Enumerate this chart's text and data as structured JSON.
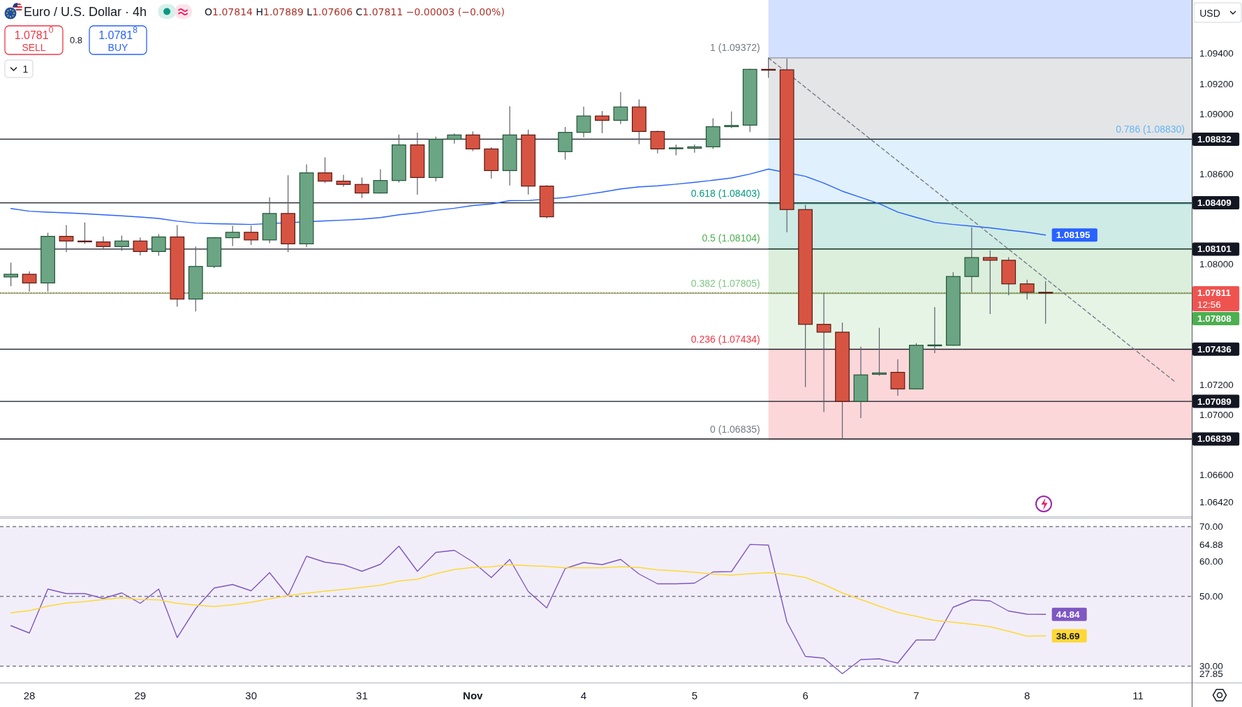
{
  "chart_data": [
    {
      "type": "candlestick",
      "title": "Euro / U.S. Dollar · 4h",
      "subtitle": "O1.07814 H1.07889 L1.07606 C1.07811 −0.00003 (−0.00%)",
      "categories": [
        null,
        null,
        null,
        null,
        null,
        null,
        null,
        null,
        null,
        null,
        null,
        null,
        null,
        null,
        null,
        null,
        null,
        null,
        null,
        null,
        null,
        null,
        null,
        null,
        null,
        null,
        null,
        null,
        null,
        null,
        null,
        null,
        null,
        null,
        null,
        null,
        null,
        null,
        null,
        null,
        null,
        null,
        null,
        null,
        null,
        null,
        null,
        null,
        null,
        null,
        null,
        null,
        null,
        null,
        null,
        null,
        null,
        null,
        null,
        null,
        null,
        null,
        null,
        null
      ],
      "ohlc": [
        [
          1.07916,
          1.08012,
          1.07855,
          1.07934
        ],
        [
          1.07934,
          1.07953,
          1.07819,
          1.07876
        ],
        [
          1.07876,
          1.0821,
          1.07819,
          1.08186
        ],
        [
          1.08186,
          1.08261,
          1.08081,
          1.08155
        ],
        [
          1.08155,
          1.08278,
          1.08136,
          1.08153
        ],
        [
          1.08149,
          1.08186,
          1.081,
          1.08118
        ],
        [
          1.08118,
          1.08191,
          1.0809,
          1.08155
        ],
        [
          1.08155,
          1.08179,
          1.08059,
          1.08085
        ],
        [
          1.08085,
          1.08201,
          1.08057,
          1.08182
        ],
        [
          1.08182,
          1.08261,
          1.07718,
          1.07769
        ],
        [
          1.07769,
          1.08118,
          1.07687,
          1.07986
        ],
        [
          1.07986,
          1.08182,
          1.07975,
          1.08177
        ],
        [
          1.08177,
          1.08256,
          1.08122,
          1.08213
        ],
        [
          1.08213,
          1.08256,
          1.08129,
          1.08162
        ],
        [
          1.08162,
          1.08445,
          1.0814,
          1.08338
        ],
        [
          1.08338,
          1.08592,
          1.08081,
          1.08136
        ],
        [
          1.08136,
          1.08665,
          1.08114,
          1.08608
        ],
        [
          1.08608,
          1.08711,
          1.0854,
          1.08553
        ],
        [
          1.08553,
          1.08595,
          1.08516,
          1.08531
        ],
        [
          1.08531,
          1.08577,
          1.08441,
          1.08474
        ],
        [
          1.08474,
          1.08632,
          1.08471,
          1.08557
        ],
        [
          1.08557,
          1.08863,
          1.08544,
          1.08794
        ],
        [
          1.08794,
          1.08876,
          1.08463,
          1.08577
        ],
        [
          1.08577,
          1.08849,
          1.08552,
          1.08831
        ],
        [
          1.08831,
          1.0887,
          1.08803,
          1.0886
        ],
        [
          1.0886,
          1.08884,
          1.08753,
          1.08767
        ],
        [
          1.08767,
          1.08778,
          1.0857,
          1.08623
        ],
        [
          1.08623,
          1.09051,
          1.08524,
          1.0886
        ],
        [
          1.0886,
          1.08895,
          1.08464,
          1.0852
        ],
        [
          1.0852,
          1.08527,
          1.08305,
          1.08316
        ],
        [
          1.08749,
          1.08913,
          1.08696,
          1.08877
        ],
        [
          1.08877,
          1.09048,
          1.08844,
          1.08986
        ],
        [
          1.08986,
          1.09019,
          1.08872,
          1.08957
        ],
        [
          1.08957,
          1.09145,
          1.08932,
          1.09046
        ],
        [
          1.09046,
          1.09096,
          1.08799,
          1.08883
        ],
        [
          1.08883,
          1.08888,
          1.08737,
          1.08767
        ],
        [
          1.08771,
          1.08796,
          1.08725,
          1.08774
        ],
        [
          1.08771,
          1.08797,
          1.08742,
          1.08781
        ],
        [
          1.08781,
          1.08971,
          1.08767,
          1.08915
        ],
        [
          1.08915,
          1.09016,
          1.08906,
          1.08923
        ],
        [
          1.08925,
          1.093,
          1.08879,
          1.09296
        ],
        [
          1.09296,
          1.09372,
          1.0924,
          1.09293
        ],
        [
          1.09293,
          1.09367,
          1.08213,
          1.08364
        ],
        [
          1.08364,
          1.08395,
          1.07185,
          1.07601
        ],
        [
          1.07601,
          1.0781,
          1.07017,
          1.07549
        ],
        [
          1.07549,
          1.07613,
          1.06835,
          1.07089
        ],
        [
          1.07089,
          1.07452,
          1.06978,
          1.07265
        ],
        [
          1.07269,
          1.07578,
          1.0726,
          1.07278
        ],
        [
          1.07282,
          1.07369,
          1.07127,
          1.07172
        ],
        [
          1.07172,
          1.07476,
          1.07168,
          1.07462
        ],
        [
          1.0746,
          1.07716,
          1.0741,
          1.07464
        ],
        [
          1.07462,
          1.07948,
          1.0746,
          1.07919
        ],
        [
          1.07919,
          1.08246,
          1.07814,
          1.08045
        ],
        [
          1.08045,
          1.08093,
          1.07669,
          1.08027
        ],
        [
          1.08027,
          1.08047,
          1.07795,
          1.0787
        ],
        [
          1.0787,
          1.07898,
          1.07766,
          1.07814
        ],
        [
          1.07814,
          1.07889,
          1.07606,
          1.07811
        ],
        null,
        null,
        null,
        null,
        null,
        null,
        null
      ],
      "series": [
        {
          "type": "line",
          "color": "#2962ff",
          "values": [
            1.08371,
            1.08353,
            1.08347,
            1.08342,
            1.08336,
            1.08329,
            1.08322,
            1.08314,
            1.08305,
            1.08287,
            1.08274,
            1.0827,
            1.08268,
            1.08265,
            null,
            null,
            null,
            1.08289,
            1.08294,
            1.083,
            1.08311,
            1.08329,
            1.08342,
            1.08359,
            1.08373,
            1.08391,
            1.08401,
            1.08423,
            1.08424,
            null,
            1.08444,
            1.08462,
            1.0848,
            1.08501,
            1.08515,
            1.08522,
            1.08533,
            1.08545,
            1.08559,
            1.08574,
            1.086,
            1.08633,
            null,
            1.08585,
            1.0854,
            1.08486,
            1.08445,
            1.08403,
            1.08347,
            1.08312,
            1.08279,
            1.08265,
            1.08254,
            1.08242,
            1.08227,
            1.08213,
            1.08195,
            null,
            null,
            null,
            null,
            null,
            null,
            null
          ],
          "value_labels": [
            null,
            null,
            null,
            null,
            null,
            null,
            null,
            null,
            null,
            null,
            null,
            null,
            null,
            null,
            null,
            null,
            null,
            null,
            null,
            null,
            null,
            null,
            null,
            null,
            null,
            null,
            null,
            null,
            null,
            null,
            null,
            null,
            null,
            null,
            null,
            null,
            null,
            null,
            null,
            null,
            null,
            null,
            null,
            null,
            null,
            null,
            null,
            null,
            null,
            null,
            null,
            null,
            null,
            null,
            null,
            null,
            "1.08195",
            null,
            null,
            null,
            null,
            null,
            null,
            null
          ]
        },
        {
          "type": "line",
          "color": "#787b86",
          "line_style": "dashed",
          "values": [
            null,
            null,
            null,
            null,
            null,
            null,
            null,
            null,
            null,
            null,
            null,
            null,
            null,
            null,
            null,
            null,
            null,
            null,
            null,
            null,
            null,
            null,
            null,
            null,
            null,
            null,
            null,
            null,
            null,
            null,
            null,
            null,
            null,
            null,
            null,
            null,
            null,
            null,
            null,
            null,
            null,
            1.09372,
            null,
            null,
            null,
            null,
            null,
            null,
            null,
            null,
            null,
            null,
            null,
            null,
            null,
            null,
            null,
            null,
            null,
            null,
            null,
            null,
            null,
            1.0722
          ]
        }
      ],
      "ylim": [
        1.06324,
        1.09757
      ],
      "yticks": [
        {
          "value": 1.094,
          "label": "1.09400"
        },
        {
          "value": 1.092,
          "label": "1.09200"
        },
        {
          "value": 1.09,
          "label": "1.09000"
        },
        {
          "value": 1.086,
          "label": "1.08600"
        },
        {
          "value": 1.08,
          "label": "1.08000"
        },
        {
          "value": 1.072,
          "label": "1.07200"
        },
        {
          "value": 1.07,
          "label": "1.07000"
        },
        {
          "value": 1.066,
          "label": "1.06600"
        },
        {
          "value": 1.0642,
          "label": "1.06420"
        }
      ],
      "tick_labels": "y",
      "bands": [
        {
          "axis": "y",
          "from": 1.09372,
          "to": 1.09757,
          "color": "#2962ff"
        },
        {
          "axis": "y",
          "from": 1.0883,
          "to": 1.09372,
          "label": "1 (1.09372)",
          "color": "#787b86"
        },
        {
          "axis": "y",
          "from": 1.08403,
          "to": 1.0883,
          "label": "0.786 (1.08830)",
          "color": "#64b5f6"
        },
        {
          "axis": "y",
          "from": 1.08104,
          "to": 1.08403,
          "label": "0.618 (1.08403)",
          "color": "#089981"
        },
        {
          "axis": "y",
          "from": 1.07805,
          "to": 1.08104,
          "label": "0.5 (1.08104)",
          "color": "#4caf50"
        },
        {
          "axis": "y",
          "from": 1.07434,
          "to": 1.07805,
          "label": "0.382 (1.07805)",
          "color": "#81c784"
        },
        {
          "axis": "y",
          "from": 1.06835,
          "to": 1.07434,
          "label": "0.236 (1.07434)",
          "color": "#f23645"
        }
      ],
      "ref_lines": [
        {
          "axis": "y",
          "value": 1.08832,
          "label": "1.08832",
          "color": "#131722"
        },
        {
          "axis": "y",
          "value": 1.08409,
          "label": "1.08409",
          "color": "#131722"
        },
        {
          "axis": "y",
          "value": 1.08101,
          "label": "1.08101",
          "color": "#131722"
        },
        {
          "axis": "y",
          "value": 1.07436,
          "label": "1.07436",
          "color": "#131722"
        },
        {
          "axis": "y",
          "value": 1.07089,
          "label": "1.07089",
          "color": "#131722"
        },
        {
          "axis": "y",
          "value": 1.06839,
          "label": "1.06839",
          "color": "#131722"
        },
        {
          "axis": "y",
          "value": 1.07808,
          "label": "1.07808",
          "color": "#4caf50"
        },
        {
          "axis": "y",
          "value": 1.07811,
          "label": "1.07811\n12:56",
          "color": "#ef5350",
          "line_style": "dotted"
        }
      ],
      "annotations": [
        "1.0781$^{0}$",
        "SELL",
        "0.8",
        "1.0781$^{8}$",
        "BUY",
        "1",
        "USD",
        {
          "text": "0 (1.06835)",
          "y": 1.06835
        }
      ]
    },
    {
      "type": "line",
      "categories": [
        null,
        "28",
        null,
        null,
        null,
        null,
        null,
        "29",
        null,
        null,
        null,
        null,
        null,
        "30",
        null,
        null,
        null,
        null,
        null,
        "31",
        null,
        null,
        null,
        null,
        null,
        "Nov",
        null,
        null,
        null,
        null,
        null,
        "4",
        null,
        null,
        null,
        null,
        null,
        "5",
        null,
        null,
        null,
        null,
        null,
        "6",
        null,
        null,
        null,
        null,
        null,
        "7",
        null,
        null,
        null,
        null,
        null,
        "8",
        null,
        null,
        null,
        null,
        null,
        "11",
        null,
        null
      ],
      "series": [
        {
          "color": "#7e57c2",
          "values": [
            41.6,
            39.5,
            52.1,
            50.8,
            50.8,
            49.4,
            51.0,
            48.0,
            52.1,
            38.2,
            46.5,
            52.4,
            53.4,
            51.6,
            56.8,
            50.2,
            61.5,
            59.8,
            59.1,
            57.2,
            59.2,
            64.4,
            57.2,
            62.6,
            63.2,
            59.9,
            55.4,
            60.6,
            51.4,
            46.7,
            58.0,
            59.7,
            59.1,
            60.6,
            56.4,
            53.6,
            53.6,
            53.8,
            57.0,
            57.1,
            64.88,
            64.7,
            42.7,
            32.8,
            32.3,
            27.85,
            31.9,
            32.1,
            30.9,
            37.5,
            37.5,
            46.9,
            49.0,
            48.7,
            45.8,
            44.9,
            44.84,
            null,
            null,
            null,
            null,
            null,
            null,
            null
          ],
          "value_labels": [
            null,
            null,
            null,
            null,
            null,
            null,
            null,
            null,
            null,
            null,
            null,
            null,
            null,
            null,
            null,
            null,
            null,
            null,
            null,
            null,
            null,
            null,
            null,
            null,
            null,
            null,
            null,
            null,
            null,
            null,
            null,
            null,
            null,
            null,
            null,
            null,
            null,
            null,
            null,
            null,
            null,
            null,
            null,
            null,
            null,
            null,
            null,
            null,
            null,
            null,
            null,
            null,
            null,
            null,
            null,
            null,
            "44.84",
            null,
            null,
            null,
            null,
            null,
            null,
            null
          ]
        },
        {
          "color": "#fdd835",
          "values": [
            45.3,
            45.9,
            47.2,
            48.1,
            48.5,
            49.1,
            49.6,
            49.1,
            49.0,
            48.0,
            47.5,
            47.1,
            47.6,
            48.3,
            49.3,
            50.2,
            50.9,
            51.5,
            52.0,
            52.6,
            53.2,
            54.4,
            54.9,
            56.5,
            57.7,
            58.3,
            58.5,
            59.1,
            58.8,
            58.6,
            58.2,
            58.2,
            58.2,
            58.5,
            58.3,
            57.6,
            57.3,
            56.9,
            56.4,
            56.1,
            56.5,
            56.8,
            56.3,
            55.4,
            53.4,
            51.0,
            49.1,
            47.2,
            45.4,
            44.3,
            43.1,
            42.6,
            42.0,
            41.3,
            40.0,
            38.6,
            38.69,
            null,
            null,
            null,
            null,
            null,
            null,
            null
          ],
          "value_labels": [
            null,
            null,
            null,
            null,
            null,
            null,
            null,
            null,
            null,
            null,
            null,
            null,
            null,
            null,
            null,
            null,
            null,
            null,
            null,
            null,
            null,
            null,
            null,
            null,
            null,
            null,
            null,
            null,
            null,
            null,
            null,
            null,
            null,
            null,
            null,
            null,
            null,
            null,
            null,
            null,
            null,
            null,
            null,
            null,
            null,
            null,
            null,
            null,
            null,
            null,
            null,
            null,
            null,
            null,
            null,
            null,
            "38.69",
            null,
            null,
            null,
            null,
            null,
            null,
            null
          ]
        }
      ],
      "ylim": [
        25.3,
        72.5
      ],
      "yticks": [
        {
          "value": 70,
          "label": "70.00"
        },
        {
          "value": 64.88,
          "label": "64.88"
        },
        {
          "value": 60,
          "label": "60.00"
        },
        {
          "value": 50,
          "label": "50.00"
        },
        {
          "value": 30,
          "label": "30.00"
        },
        {
          "value": 27.85,
          "label": "27.85"
        }
      ],
      "bands": [
        {
          "axis": "y",
          "from": 30,
          "to": 70,
          "color": "#7e57c2"
        }
      ],
      "ref_lines": [
        {
          "axis": "y",
          "value": 70,
          "color": "#787b86",
          "line_style": "dashed"
        },
        {
          "axis": "y",
          "value": 50,
          "color": "#787b86",
          "line_style": "dashed"
        },
        {
          "axis": "y",
          "value": 30,
          "color": "#787b86",
          "line_style": "dashed"
        }
      ]
    }
  ]
}
